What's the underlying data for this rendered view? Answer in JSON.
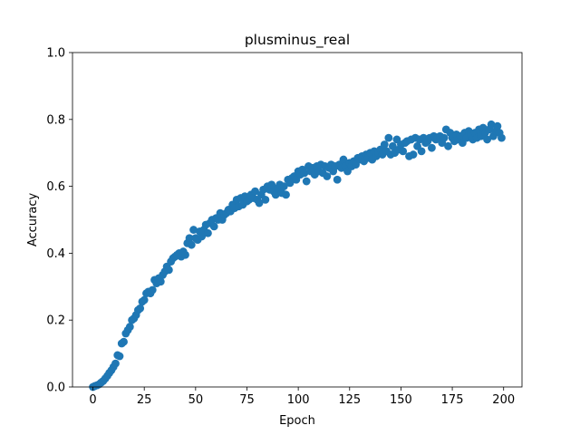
{
  "chart_data": {
    "type": "scatter",
    "title": "plusminus_real",
    "xlabel": "Epoch",
    "ylabel": "Accuracy",
    "xlim": [
      -9.95,
      208.95
    ],
    "ylim": [
      0.0,
      1.0
    ],
    "xticks": [
      0,
      25,
      50,
      75,
      100,
      125,
      150,
      175,
      200
    ],
    "yticks": [
      0.0,
      0.2,
      0.4,
      0.6,
      0.8,
      1.0
    ],
    "xtick_labels": [
      "0",
      "25",
      "50",
      "75",
      "100",
      "125",
      "150",
      "175",
      "200"
    ],
    "ytick_labels": [
      "0.0",
      "0.2",
      "0.4",
      "0.6",
      "0.8",
      "1.0"
    ],
    "grid": false,
    "legend": false,
    "marker_color": "#1f77b4",
    "series": [
      {
        "values": [
          [
            0,
            0.0
          ],
          [
            1,
            0.003
          ],
          [
            2,
            0.005
          ],
          [
            3,
            0.008
          ],
          [
            4,
            0.013
          ],
          [
            5,
            0.018
          ],
          [
            6,
            0.025
          ],
          [
            7,
            0.033
          ],
          [
            8,
            0.042
          ],
          [
            9,
            0.05
          ],
          [
            10,
            0.06
          ],
          [
            11,
            0.07
          ],
          [
            12,
            0.095
          ],
          [
            13,
            0.092
          ],
          [
            14,
            0.13
          ],
          [
            15,
            0.135
          ],
          [
            16,
            0.16
          ],
          [
            17,
            0.17
          ],
          [
            18,
            0.18
          ],
          [
            19,
            0.2
          ],
          [
            20,
            0.205
          ],
          [
            21,
            0.215
          ],
          [
            22,
            0.23
          ],
          [
            23,
            0.235
          ],
          [
            24,
            0.255
          ],
          [
            25,
            0.26
          ],
          [
            26,
            0.28
          ],
          [
            27,
            0.285
          ],
          [
            28,
            0.28
          ],
          [
            29,
            0.29
          ],
          [
            30,
            0.32
          ],
          [
            31,
            0.31
          ],
          [
            32,
            0.325
          ],
          [
            33,
            0.315
          ],
          [
            34,
            0.335
          ],
          [
            35,
            0.345
          ],
          [
            36,
            0.36
          ],
          [
            37,
            0.35
          ],
          [
            38,
            0.375
          ],
          [
            39,
            0.385
          ],
          [
            40,
            0.39
          ],
          [
            41,
            0.395
          ],
          [
            42,
            0.4
          ],
          [
            43,
            0.39
          ],
          [
            44,
            0.405
          ],
          [
            45,
            0.395
          ],
          [
            46,
            0.43
          ],
          [
            47,
            0.445
          ],
          [
            48,
            0.425
          ],
          [
            49,
            0.47
          ],
          [
            50,
            0.445
          ],
          [
            51,
            0.44
          ],
          [
            52,
            0.465
          ],
          [
            53,
            0.45
          ],
          [
            54,
            0.47
          ],
          [
            55,
            0.485
          ],
          [
            56,
            0.46
          ],
          [
            57,
            0.49
          ],
          [
            58,
            0.5
          ],
          [
            59,
            0.48
          ],
          [
            60,
            0.505
          ],
          [
            61,
            0.5
          ],
          [
            62,
            0.52
          ],
          [
            63,
            0.5
          ],
          [
            64,
            0.515
          ],
          [
            65,
            0.52
          ],
          [
            66,
            0.53
          ],
          [
            67,
            0.525
          ],
          [
            68,
            0.545
          ],
          [
            69,
            0.535
          ],
          [
            70,
            0.56
          ],
          [
            71,
            0.54
          ],
          [
            72,
            0.565
          ],
          [
            73,
            0.545
          ],
          [
            74,
            0.57
          ],
          [
            75,
            0.555
          ],
          [
            76,
            0.56
          ],
          [
            77,
            0.575
          ],
          [
            78,
            0.565
          ],
          [
            79,
            0.585
          ],
          [
            80,
            0.56
          ],
          [
            81,
            0.55
          ],
          [
            82,
            0.575
          ],
          [
            83,
            0.59
          ],
          [
            84,
            0.56
          ],
          [
            85,
            0.6
          ],
          [
            86,
            0.59
          ],
          [
            87,
            0.605
          ],
          [
            88,
            0.585
          ],
          [
            89,
            0.575
          ],
          [
            90,
            0.595
          ],
          [
            91,
            0.605
          ],
          [
            92,
            0.58
          ],
          [
            93,
            0.6
          ],
          [
            94,
            0.575
          ],
          [
            95,
            0.62
          ],
          [
            96,
            0.61
          ],
          [
            97,
            0.625
          ],
          [
            98,
            0.63
          ],
          [
            99,
            0.62
          ],
          [
            100,
            0.645
          ],
          [
            101,
            0.635
          ],
          [
            102,
            0.65
          ],
          [
            103,
            0.64
          ],
          [
            104,
            0.615
          ],
          [
            105,
            0.66
          ],
          [
            106,
            0.645
          ],
          [
            107,
            0.655
          ],
          [
            108,
            0.635
          ],
          [
            109,
            0.66
          ],
          [
            110,
            0.645
          ],
          [
            111,
            0.665
          ],
          [
            112,
            0.64
          ],
          [
            113,
            0.66
          ],
          [
            114,
            0.63
          ],
          [
            115,
            0.655
          ],
          [
            116,
            0.665
          ],
          [
            117,
            0.645
          ],
          [
            118,
            0.66
          ],
          [
            119,
            0.62
          ],
          [
            120,
            0.665
          ],
          [
            121,
            0.655
          ],
          [
            122,
            0.68
          ],
          [
            123,
            0.66
          ],
          [
            124,
            0.645
          ],
          [
            125,
            0.67
          ],
          [
            126,
            0.66
          ],
          [
            127,
            0.675
          ],
          [
            128,
            0.665
          ],
          [
            129,
            0.685
          ],
          [
            130,
            0.68
          ],
          [
            131,
            0.69
          ],
          [
            132,
            0.675
          ],
          [
            133,
            0.695
          ],
          [
            134,
            0.685
          ],
          [
            135,
            0.7
          ],
          [
            136,
            0.68
          ],
          [
            137,
            0.705
          ],
          [
            138,
            0.69
          ],
          [
            139,
            0.7
          ],
          [
            140,
            0.71
          ],
          [
            141,
            0.695
          ],
          [
            142,
            0.725
          ],
          [
            143,
            0.705
          ],
          [
            144,
            0.745
          ],
          [
            145,
            0.695
          ],
          [
            146,
            0.72
          ],
          [
            147,
            0.7
          ],
          [
            148,
            0.74
          ],
          [
            149,
            0.71
          ],
          [
            150,
            0.725
          ],
          [
            151,
            0.705
          ],
          [
            152,
            0.73
          ],
          [
            153,
            0.735
          ],
          [
            154,
            0.69
          ],
          [
            155,
            0.74
          ],
          [
            156,
            0.695
          ],
          [
            157,
            0.745
          ],
          [
            158,
            0.72
          ],
          [
            159,
            0.74
          ],
          [
            160,
            0.705
          ],
          [
            161,
            0.745
          ],
          [
            162,
            0.73
          ],
          [
            163,
            0.735
          ],
          [
            164,
            0.745
          ],
          [
            165,
            0.715
          ],
          [
            166,
            0.75
          ],
          [
            167,
            0.74
          ],
          [
            168,
            0.745
          ],
          [
            169,
            0.75
          ],
          [
            170,
            0.73
          ],
          [
            171,
            0.745
          ],
          [
            172,
            0.77
          ],
          [
            173,
            0.72
          ],
          [
            174,
            0.76
          ],
          [
            175,
            0.745
          ],
          [
            176,
            0.735
          ],
          [
            177,
            0.755
          ],
          [
            178,
            0.74
          ],
          [
            179,
            0.75
          ],
          [
            180,
            0.73
          ],
          [
            181,
            0.76
          ],
          [
            182,
            0.745
          ],
          [
            183,
            0.765
          ],
          [
            184,
            0.755
          ],
          [
            185,
            0.74
          ],
          [
            186,
            0.76
          ],
          [
            187,
            0.745
          ],
          [
            188,
            0.77
          ],
          [
            189,
            0.75
          ],
          [
            190,
            0.775
          ],
          [
            191,
            0.76
          ],
          [
            192,
            0.74
          ],
          [
            193,
            0.77
          ],
          [
            194,
            0.785
          ],
          [
            195,
            0.75
          ],
          [
            196,
            0.765
          ],
          [
            197,
            0.78
          ],
          [
            198,
            0.76
          ],
          [
            199,
            0.745
          ]
        ]
      }
    ]
  }
}
